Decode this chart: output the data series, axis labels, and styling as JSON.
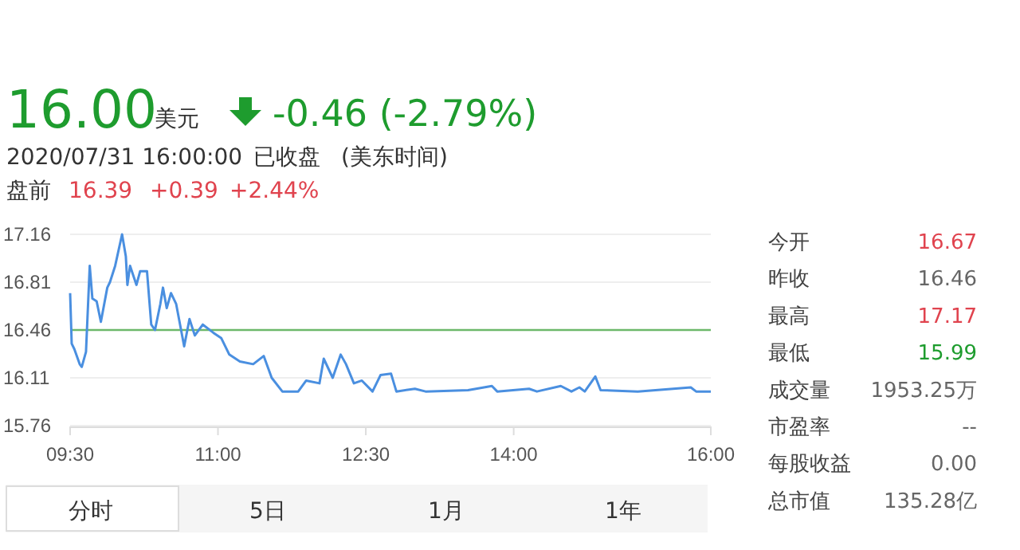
{
  "chart_data": {
    "type": "line",
    "title": "16.00",
    "annotations": [
      "美元",
      "-0.46 (-2.79%)",
      "2020/07/31 16:00:00",
      "已收盘",
      "(美东时间)",
      "盘前",
      "16.39",
      "+0.39",
      "+2.44%",
      "今开",
      "16.67",
      "昨收",
      "16.46",
      "最高",
      "17.17",
      "最低",
      "15.99",
      "成交量",
      "1953.25万",
      "市盈率",
      "--",
      "每股收益",
      "0.00",
      "总市值",
      "135.28亿",
      "分时",
      "5日",
      "1月",
      "1年"
    ],
    "series": [
      {
        "color": "#4a8fe0",
        "x": [
          9.5,
          9.516,
          9.543,
          9.597,
          9.618,
          9.661,
          9.699,
          9.726,
          9.769,
          9.812,
          9.877,
          9.904,
          9.957,
          10.027,
          10.065,
          10.081,
          10.108,
          10.173,
          10.21,
          10.28,
          10.323,
          10.361,
          10.415,
          10.442,
          10.48,
          10.523,
          10.576,
          10.657,
          10.711,
          10.765,
          10.846,
          10.953,
          11.034,
          11.115,
          11.222,
          11.357,
          11.464,
          11.545,
          11.653,
          11.814,
          11.895,
          12.03,
          12.073,
          12.164,
          12.245,
          12.299,
          12.379,
          12.46,
          12.568,
          12.649,
          12.756,
          12.81,
          12.998,
          13.106,
          13.537,
          13.779,
          13.833,
          14.156,
          14.236,
          14.478,
          14.586,
          14.667,
          14.721,
          14.828,
          14.882,
          15.259,
          15.797,
          15.851,
          16.0
        ],
        "values": [
          16.73,
          16.36,
          16.32,
          16.21,
          16.19,
          16.3,
          16.93,
          16.69,
          16.67,
          16.52,
          16.77,
          16.81,
          16.93,
          17.16,
          17.0,
          16.79,
          16.93,
          16.79,
          16.89,
          16.89,
          16.5,
          16.46,
          16.65,
          16.77,
          16.62,
          16.73,
          16.65,
          16.34,
          16.54,
          16.42,
          16.5,
          16.44,
          16.4,
          16.28,
          16.23,
          16.21,
          16.27,
          16.11,
          16.01,
          16.01,
          16.09,
          16.07,
          16.25,
          16.11,
          16.28,
          16.21,
          16.07,
          16.09,
          16.01,
          16.13,
          16.14,
          16.01,
          16.03,
          16.01,
          16.02,
          16.05,
          16.01,
          16.03,
          16.01,
          16.05,
          16.01,
          16.04,
          16.01,
          16.12,
          16.02,
          16.01,
          16.04,
          16.01,
          16.01
        ]
      }
    ],
    "xlim": [
      9.5,
      16
    ],
    "xticks": [
      {
        "value": 9.5,
        "label": "09:30"
      },
      {
        "value": 11,
        "label": "11:00"
      },
      {
        "value": 12.5,
        "label": "12:30"
      },
      {
        "value": 14,
        "label": "14:00"
      },
      {
        "value": 16,
        "label": "16:00"
      }
    ],
    "ylim": [
      15.76,
      17.16
    ],
    "yticks": [
      15.76,
      16.11,
      16.46,
      16.81,
      17.16
    ],
    "ref_lines": [
      {
        "axis": "y",
        "value": 16.46,
        "color": "#6cb86a"
      }
    ],
    "grid": "y",
    "marker": "none",
    "line_style": "solid"
  }
}
